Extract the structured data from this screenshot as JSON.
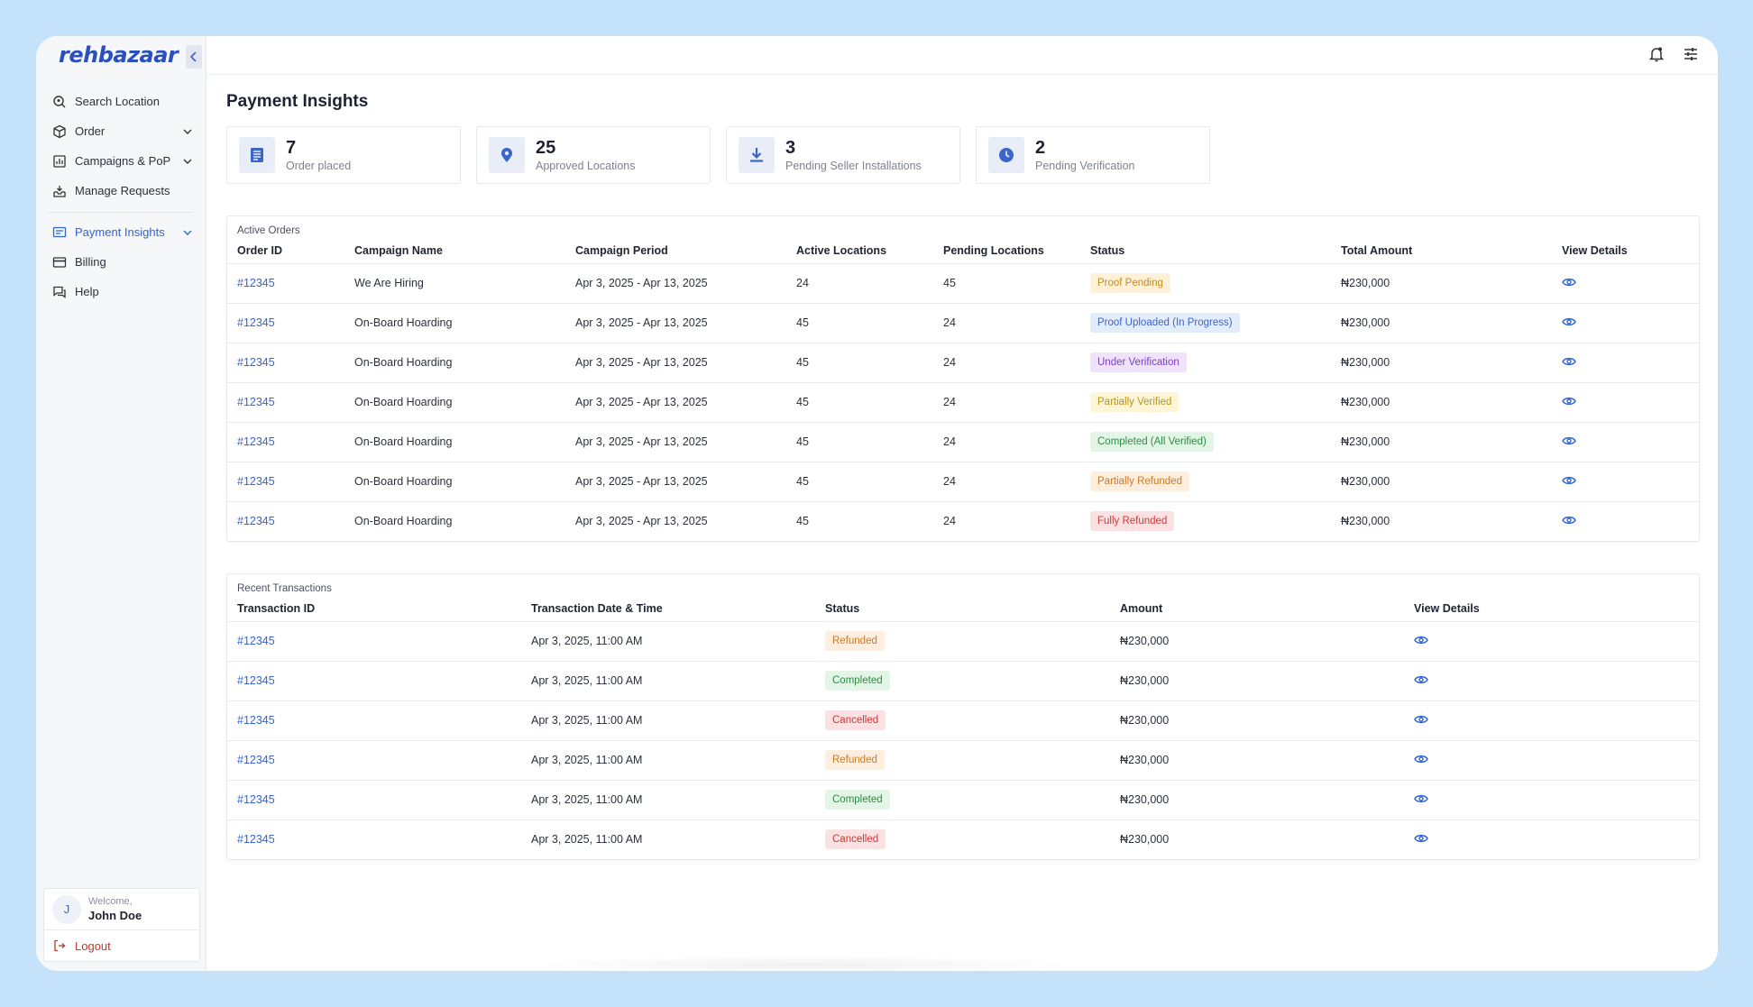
{
  "brand": {
    "logo": "rehbazaar"
  },
  "sidebar": {
    "items": [
      {
        "label": "Search Location",
        "icon": "search-location-icon",
        "has_chevron": false,
        "active": false
      },
      {
        "label": "Order",
        "icon": "box-icon",
        "has_chevron": true,
        "active": false
      },
      {
        "label": "Campaigns & PoP",
        "icon": "campaign-icon",
        "has_chevron": true,
        "active": false
      },
      {
        "label": "Manage Requests",
        "icon": "inbox-icon",
        "has_chevron": false,
        "active": false
      },
      {
        "label": "Payment Insights",
        "icon": "payment-insights-icon",
        "has_chevron": true,
        "active": true
      },
      {
        "label": "Billing",
        "icon": "card-icon",
        "has_chevron": false,
        "active": false
      },
      {
        "label": "Help",
        "icon": "chat-help-icon",
        "has_chevron": false,
        "active": false
      }
    ],
    "user": {
      "initial": "J",
      "welcome": "Welcome,",
      "name": "John Doe"
    },
    "logout_label": "Logout"
  },
  "page": {
    "title": "Payment Insights"
  },
  "stats": [
    {
      "value": "7",
      "label": "Order placed",
      "icon": "list-icon"
    },
    {
      "value": "25",
      "label": "Approved Locations",
      "icon": "location-pin-icon"
    },
    {
      "value": "3",
      "label": "Pending Seller Installations",
      "icon": "download-icon"
    },
    {
      "value": "2",
      "label": "Pending Verification",
      "icon": "clock-icon"
    }
  ],
  "active_orders": {
    "caption": "Active Orders",
    "columns": [
      "Order ID",
      "Campaign Name",
      "Campaign Period",
      "Active Locations",
      "Pending Locations",
      "Status",
      "Total Amount",
      "View Details"
    ],
    "rows": [
      {
        "id": "#12345",
        "name": "We Are Hiring",
        "period": "Apr 3, 2025 - Apr 13, 2025",
        "active": "24",
        "pending": "45",
        "status": "Proof Pending",
        "status_key": "proof-pending",
        "amount": "₦230,000"
      },
      {
        "id": "#12345",
        "name": "On-Board Hoarding",
        "period": "Apr 3, 2025 - Apr 13, 2025",
        "active": "45",
        "pending": "24",
        "status": "Proof Uploaded (In Progress)",
        "status_key": "proof-uploaded",
        "amount": "₦230,000"
      },
      {
        "id": "#12345",
        "name": "On-Board Hoarding",
        "period": "Apr 3, 2025 - Apr 13, 2025",
        "active": "45",
        "pending": "24",
        "status": "Under Verification",
        "status_key": "under-verification",
        "amount": "₦230,000"
      },
      {
        "id": "#12345",
        "name": "On-Board Hoarding",
        "period": "Apr 3, 2025 - Apr 13, 2025",
        "active": "45",
        "pending": "24",
        "status": "Partially Verified",
        "status_key": "partially-verified",
        "amount": "₦230,000"
      },
      {
        "id": "#12345",
        "name": "On-Board Hoarding",
        "period": "Apr 3, 2025 - Apr 13, 2025",
        "active": "45",
        "pending": "24",
        "status": "Completed (All Verified)",
        "status_key": "completed-verified",
        "amount": "₦230,000"
      },
      {
        "id": "#12345",
        "name": "On-Board Hoarding",
        "period": "Apr 3, 2025 - Apr 13, 2025",
        "active": "45",
        "pending": "24",
        "status": "Partially Refunded",
        "status_key": "partially-refunded",
        "amount": "₦230,000"
      },
      {
        "id": "#12345",
        "name": "On-Board Hoarding",
        "period": "Apr 3, 2025 - Apr 13, 2025",
        "active": "45",
        "pending": "24",
        "status": "Fully Refunded",
        "status_key": "fully-refunded",
        "amount": "₦230,000"
      }
    ]
  },
  "recent_transactions": {
    "caption": "Recent Transactions",
    "columns": [
      "Transaction ID",
      "Transaction Date & Time",
      "Status",
      "Amount",
      "View Details"
    ],
    "rows": [
      {
        "id": "#12345",
        "datetime": "Apr 3, 2025, 11:00 AM",
        "status": "Refunded",
        "status_key": "refunded",
        "amount": "₦230,000"
      },
      {
        "id": "#12345",
        "datetime": "Apr 3, 2025, 11:00 AM",
        "status": "Completed",
        "status_key": "completed",
        "amount": "₦230,000"
      },
      {
        "id": "#12345",
        "datetime": "Apr 3, 2025, 11:00 AM",
        "status": "Cancelled",
        "status_key": "cancelled",
        "amount": "₦230,000"
      },
      {
        "id": "#12345",
        "datetime": "Apr 3, 2025, 11:00 AM",
        "status": "Refunded",
        "status_key": "refunded",
        "amount": "₦230,000"
      },
      {
        "id": "#12345",
        "datetime": "Apr 3, 2025, 11:00 AM",
        "status": "Completed",
        "status_key": "completed",
        "amount": "₦230,000"
      },
      {
        "id": "#12345",
        "datetime": "Apr 3, 2025, 11:00 AM",
        "status": "Cancelled",
        "status_key": "cancelled",
        "amount": "₦230,000"
      }
    ]
  },
  "colors": {
    "accent": "#3164d8",
    "background": "#c5e2fb",
    "status": {
      "proof-pending": {
        "bg": "#fdf1d8",
        "fg": "#c98a1e"
      },
      "proof-uploaded": {
        "bg": "#e3ecfb",
        "fg": "#3b66c9"
      },
      "under-verification": {
        "bg": "#efe2fb",
        "fg": "#7a3fc4"
      },
      "partially-verified": {
        "bg": "#fdf6d6",
        "fg": "#b9951a"
      },
      "completed-verified": {
        "bg": "#e3f5e6",
        "fg": "#2f8a45"
      },
      "partially-refunded": {
        "bg": "#fdeedd",
        "fg": "#c97b2a"
      },
      "fully-refunded": {
        "bg": "#fbe1e1",
        "fg": "#c93a3a"
      },
      "refunded": {
        "bg": "#fdeedd",
        "fg": "#c97b2a"
      },
      "completed": {
        "bg": "#e3f5e6",
        "fg": "#2f8a45"
      },
      "cancelled": {
        "bg": "#fbe1e1",
        "fg": "#c93a3a"
      }
    }
  }
}
